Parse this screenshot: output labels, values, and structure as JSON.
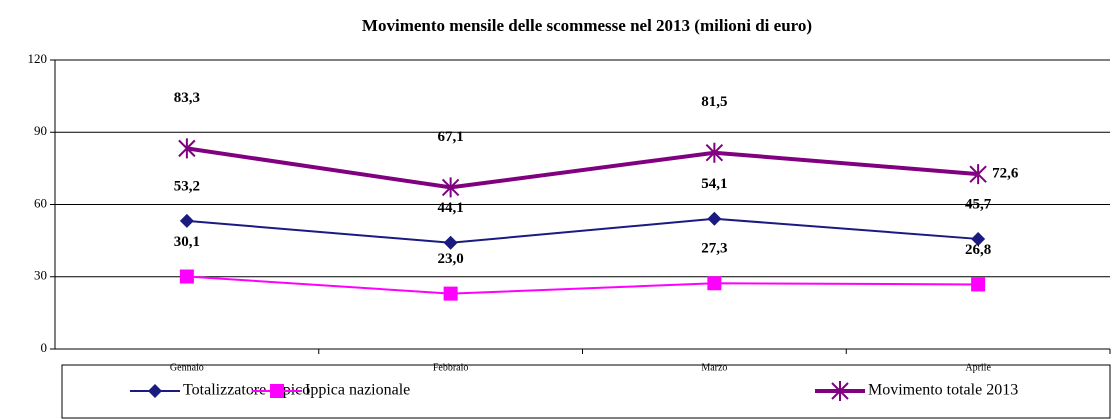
{
  "chart_data": {
    "type": "line",
    "title": "Movimento mensile delle scommesse nel 2013 (milioni di euro)",
    "categories": [
      "Gennaio",
      "Febbraio",
      "Marzo",
      "Aprile"
    ],
    "series": [
      {
        "name": "Totalizzatore ippico",
        "color": "#1a1a80",
        "marker": "diamond",
        "values": [
          53.2,
          44.1,
          54.1,
          45.7
        ],
        "value_labels": [
          "53,2",
          "44,1",
          "54,1",
          "45,7"
        ]
      },
      {
        "name": "Ippica nazionale",
        "color": "#ff00ff",
        "marker": "square",
        "values": [
          30.1,
          23.0,
          27.3,
          26.8
        ],
        "value_labels": [
          "30,1",
          "23,0",
          "27,3",
          "26,8"
        ]
      },
      {
        "name": "Movimento totale 2013",
        "color": "#800080",
        "marker": "asterisk",
        "values": [
          83.3,
          67.1,
          81.5,
          72.6
        ],
        "value_labels": [
          "83,3",
          "67,1",
          "81,5",
          "72,6"
        ]
      }
    ],
    "ylim": [
      0,
      120
    ],
    "yticks": [
      0,
      30,
      60,
      90,
      120
    ],
    "grid": true,
    "legend": "bottom"
  }
}
